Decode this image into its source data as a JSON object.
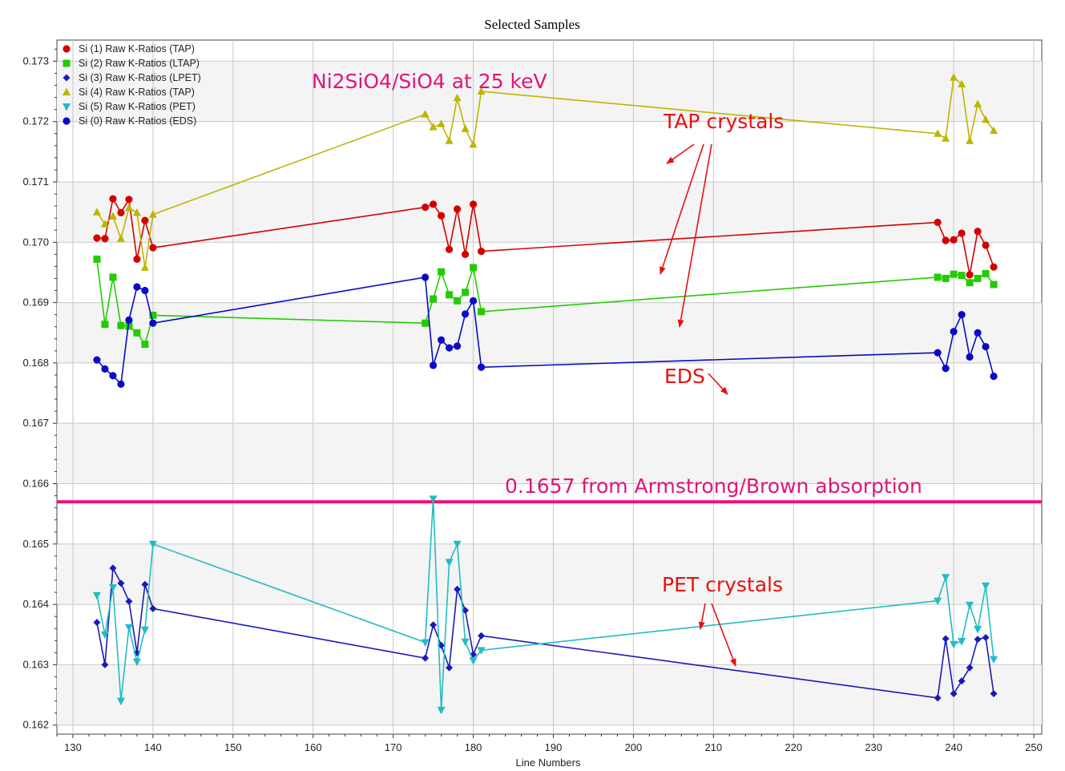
{
  "chart_data": {
    "type": "line",
    "title": "Selected Samples",
    "xlabel": "Line Numbers",
    "ylabel": "",
    "xlim": [
      128,
      251
    ],
    "ylim": [
      0.16185,
      0.17335
    ],
    "xticks": [
      130,
      140,
      150,
      160,
      170,
      180,
      190,
      200,
      210,
      220,
      230,
      240,
      250
    ],
    "yticks": [
      0.162,
      0.163,
      0.164,
      0.165,
      0.166,
      0.167,
      0.168,
      0.169,
      0.17,
      0.171,
      0.172,
      0.173
    ],
    "grid": true,
    "legend_position": "top-left",
    "series": [
      {
        "name": "Si (1) Raw K-Ratios (TAP)",
        "color": "#d40000",
        "marker": "circle",
        "points": [
          [
            133,
            0.17007
          ],
          [
            134,
            0.17006
          ],
          [
            135,
            0.17072
          ],
          [
            136,
            0.17049
          ],
          [
            137,
            0.17071
          ],
          [
            138,
            0.16972
          ],
          [
            139,
            0.17036
          ],
          [
            140,
            0.16991
          ],
          [
            174,
            0.17058
          ],
          [
            175,
            0.17063
          ],
          [
            176,
            0.17044
          ],
          [
            177,
            0.16988
          ],
          [
            178,
            0.17055
          ],
          [
            179,
            0.1698
          ],
          [
            180,
            0.17063
          ],
          [
            181,
            0.16985
          ],
          [
            238,
            0.17033
          ],
          [
            239,
            0.17003
          ],
          [
            240,
            0.17004
          ],
          [
            241,
            0.17015
          ],
          [
            242,
            0.16946
          ],
          [
            243,
            0.17018
          ],
          [
            244,
            0.16995
          ],
          [
            245,
            0.16959
          ]
        ]
      },
      {
        "name": "Si (2) Raw K-Ratios (LTAP)",
        "color": "#22cc00",
        "marker": "square",
        "points": [
          [
            133,
            0.16972
          ],
          [
            134,
            0.16864
          ],
          [
            135,
            0.16942
          ],
          [
            136,
            0.16862
          ],
          [
            137,
            0.16861
          ],
          [
            138,
            0.1685
          ],
          [
            139,
            0.16831
          ],
          [
            140,
            0.16879
          ],
          [
            174,
            0.16866
          ],
          [
            175,
            0.16906
          ],
          [
            176,
            0.16951
          ],
          [
            177,
            0.16913
          ],
          [
            178,
            0.16903
          ],
          [
            179,
            0.16917
          ],
          [
            180,
            0.16958
          ],
          [
            181,
            0.16885
          ],
          [
            238,
            0.16942
          ],
          [
            239,
            0.1694
          ],
          [
            240,
            0.16947
          ],
          [
            241,
            0.16945
          ],
          [
            242,
            0.16933
          ],
          [
            243,
            0.1694
          ],
          [
            244,
            0.16948
          ],
          [
            245,
            0.1693
          ]
        ]
      },
      {
        "name": "Si (3) Raw K-Ratios (LPET)",
        "color": "#1a1ab8",
        "marker": "diamond",
        "points": [
          [
            133,
            0.1637
          ],
          [
            134,
            0.163
          ],
          [
            135,
            0.1646
          ],
          [
            136,
            0.16435
          ],
          [
            137,
            0.16405
          ],
          [
            138,
            0.1632
          ],
          [
            139,
            0.16433
          ],
          [
            140,
            0.16393
          ],
          [
            174,
            0.16311
          ],
          [
            175,
            0.16366
          ],
          [
            176,
            0.16332
          ],
          [
            177,
            0.16295
          ],
          [
            178,
            0.16425
          ],
          [
            179,
            0.1639
          ],
          [
            180,
            0.16317
          ],
          [
            181,
            0.16348
          ],
          [
            238,
            0.16245
          ],
          [
            239,
            0.16343
          ],
          [
            240,
            0.16252
          ],
          [
            241,
            0.16273
          ],
          [
            242,
            0.16295
          ],
          [
            243,
            0.16342
          ],
          [
            244,
            0.16345
          ],
          [
            245,
            0.16252
          ]
        ]
      },
      {
        "name": "Si (4) Raw K-Ratios (TAP)",
        "color": "#bdb500",
        "marker": "triangle-up",
        "points": [
          [
            133,
            0.1705
          ],
          [
            134,
            0.1703
          ],
          [
            135,
            0.17043
          ],
          [
            136,
            0.17006
          ],
          [
            137,
            0.17057
          ],
          [
            138,
            0.17049
          ],
          [
            139,
            0.16958
          ],
          [
            140,
            0.17046
          ],
          [
            174,
            0.17212
          ],
          [
            175,
            0.17191
          ],
          [
            176,
            0.17196
          ],
          [
            177,
            0.17168
          ],
          [
            178,
            0.17239
          ],
          [
            179,
            0.17188
          ],
          [
            180,
            0.17162
          ],
          [
            181,
            0.1725
          ],
          [
            238,
            0.1718
          ],
          [
            239,
            0.17172
          ],
          [
            240,
            0.17273
          ],
          [
            241,
            0.17262
          ],
          [
            242,
            0.17168
          ],
          [
            243,
            0.17229
          ],
          [
            244,
            0.17203
          ],
          [
            245,
            0.17185
          ]
        ]
      },
      {
        "name": "Si (5) Raw K-Ratios (PET)",
        "color": "#22bcc4",
        "marker": "triangle-down",
        "points": [
          [
            133,
            0.16415
          ],
          [
            134,
            0.1635
          ],
          [
            135,
            0.16428
          ],
          [
            136,
            0.1624
          ],
          [
            137,
            0.16362
          ],
          [
            138,
            0.16305
          ],
          [
            139,
            0.16358
          ],
          [
            140,
            0.165
          ],
          [
            174,
            0.16337
          ],
          [
            175,
            0.16575
          ],
          [
            176,
            0.16225
          ],
          [
            177,
            0.1647
          ],
          [
            178,
            0.165
          ],
          [
            179,
            0.16338
          ],
          [
            180,
            0.16307
          ],
          [
            181,
            0.16324
          ],
          [
            238,
            0.16406
          ],
          [
            239,
            0.16445
          ],
          [
            240,
            0.16334
          ],
          [
            241,
            0.16339
          ],
          [
            242,
            0.16399
          ],
          [
            243,
            0.16359
          ],
          [
            244,
            0.16431
          ],
          [
            245,
            0.16309
          ]
        ]
      },
      {
        "name": "Si (0) Raw K-Ratios (EDS)",
        "color": "#0a0ac8",
        "marker": "circle",
        "points": [
          [
            133,
            0.16805
          ],
          [
            134,
            0.1679
          ],
          [
            135,
            0.16779
          ],
          [
            136,
            0.16765
          ],
          [
            137,
            0.16871
          ],
          [
            138,
            0.16926
          ],
          [
            139,
            0.1692
          ],
          [
            140,
            0.16866
          ],
          [
            174,
            0.16942
          ],
          [
            175,
            0.16796
          ],
          [
            176,
            0.16838
          ],
          [
            177,
            0.16825
          ],
          [
            178,
            0.16828
          ],
          [
            179,
            0.16881
          ],
          [
            180,
            0.16903
          ],
          [
            181,
            0.16793
          ],
          [
            238,
            0.16817
          ],
          [
            239,
            0.16791
          ],
          [
            240,
            0.16852
          ],
          [
            241,
            0.1688
          ],
          [
            242,
            0.1681
          ],
          [
            243,
            0.1685
          ],
          [
            244,
            0.16827
          ],
          [
            245,
            0.16778
          ]
        ]
      }
    ],
    "reference_line": {
      "y": 0.1657,
      "color": "#f0107a"
    },
    "annotations": [
      {
        "text": "Ni2SiO4/SiO4 at 25 keV",
        "color": "#e0157a"
      },
      {
        "text": "TAP crystals",
        "color": "#e81010"
      },
      {
        "text": "EDS",
        "color": "#e81010"
      },
      {
        "text": "0.1657 from Armstrong/Brown absorption",
        "color": "#e0157a"
      },
      {
        "text": "PET crystals",
        "color": "#e81010"
      }
    ]
  }
}
